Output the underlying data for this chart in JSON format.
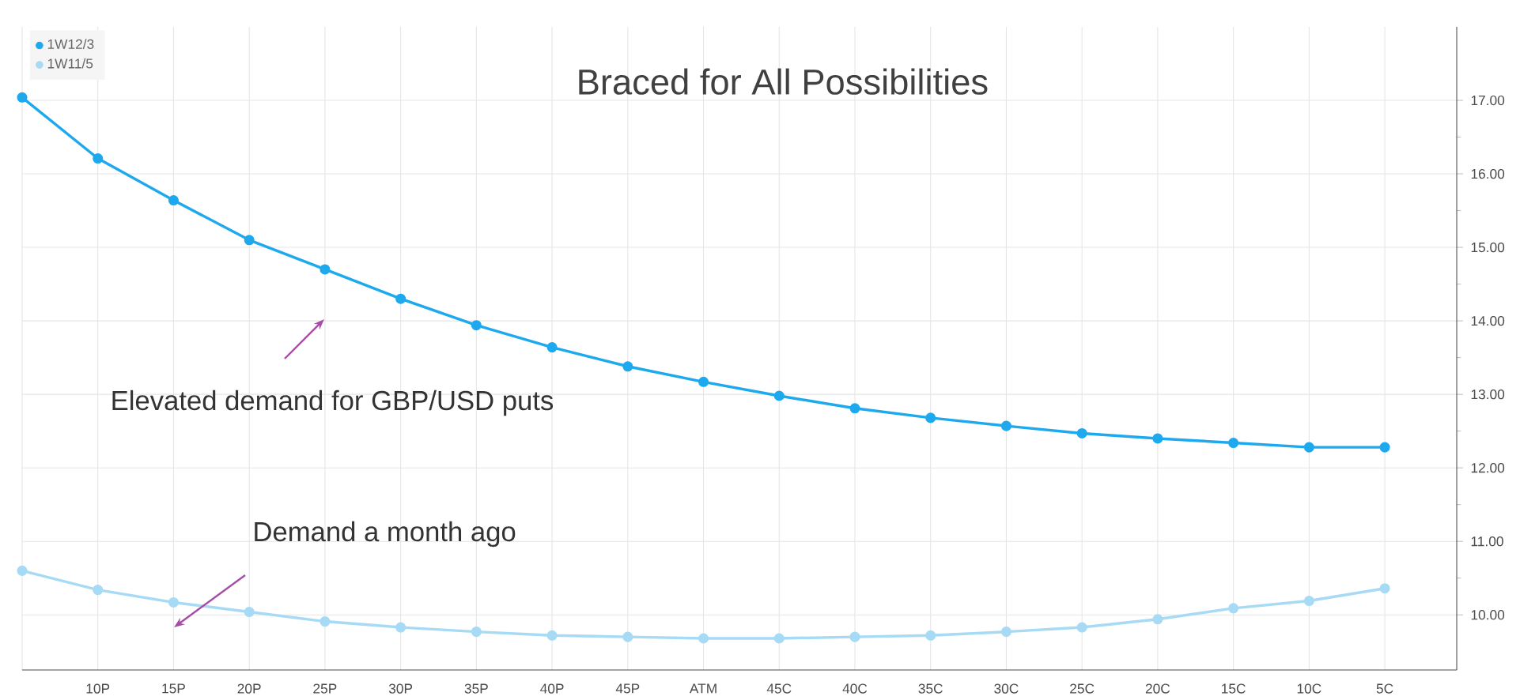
{
  "chart_data": {
    "type": "line",
    "title": "Braced for All Possibilities",
    "categories": [
      null,
      "10P",
      "15P",
      "20P",
      "25P",
      "30P",
      "35P",
      "40P",
      "45P",
      "ATM",
      "45C",
      "40C",
      "35C",
      "30C",
      "25C",
      "20C",
      "15C",
      "10C",
      "5C"
    ],
    "series": [
      {
        "name": "1W12/3",
        "color": "#1ea9ee",
        "values": [
          17.04,
          16.21,
          15.64,
          15.1,
          14.7,
          14.3,
          13.94,
          13.64,
          13.38,
          13.17,
          12.98,
          12.81,
          12.68,
          12.57,
          12.47,
          12.4,
          12.34,
          12.28,
          12.28
        ]
      },
      {
        "name": "1W11/5",
        "color": "#a6daf5",
        "values": [
          10.6,
          10.34,
          10.17,
          10.04,
          9.91,
          9.83,
          9.77,
          9.72,
          9.7,
          9.68,
          9.68,
          9.7,
          9.72,
          9.77,
          9.83,
          9.94,
          10.09,
          10.19,
          10.36
        ]
      }
    ],
    "ylim": [
      9.25,
      18.0
    ],
    "yticks": [
      {
        "value": 10,
        "label": "10.00"
      },
      {
        "value": 11,
        "label": "11.00"
      },
      {
        "value": 12,
        "label": "12.00"
      },
      {
        "value": 13,
        "label": "13.00"
      },
      {
        "value": 14,
        "label": "14.00"
      },
      {
        "value": 15,
        "label": "15.00"
      },
      {
        "value": 16,
        "label": "16.00"
      },
      {
        "value": 17,
        "label": "17.00"
      }
    ],
    "annotations": [
      "Elevated demand for GBP/USD puts",
      "Demand a month ago"
    ],
    "grid": true,
    "legend": "top left",
    "marker": "circle",
    "line_style": "solid"
  }
}
